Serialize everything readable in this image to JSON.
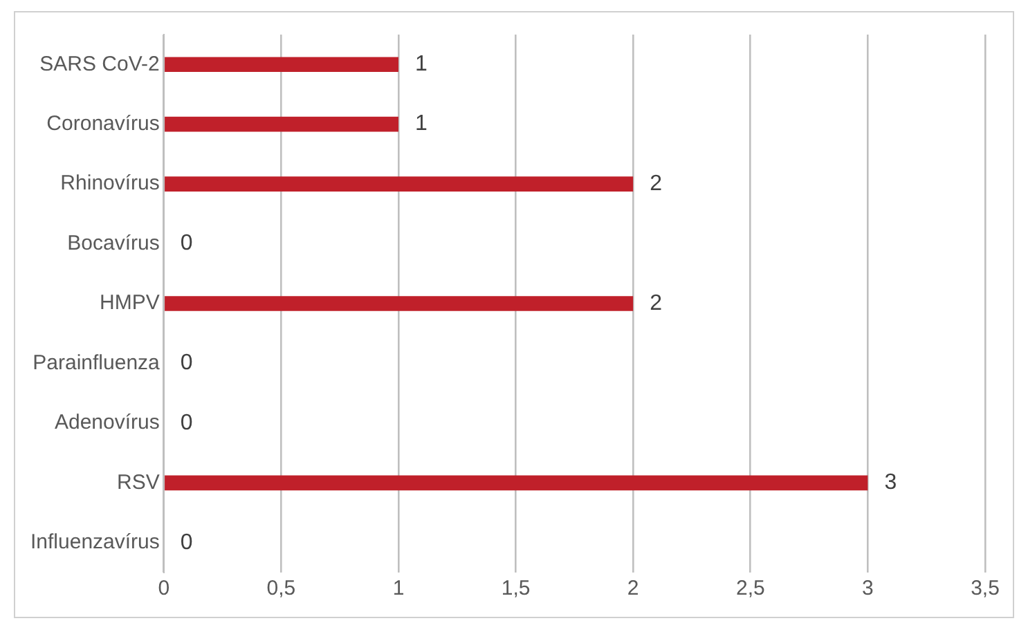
{
  "chart_data": {
    "type": "bar",
    "orientation": "horizontal",
    "categories": [
      "SARS CoV-2",
      "Coronavírus",
      "Rhinovírus",
      "Bocavírus",
      "HMPV",
      "Parainfluenza",
      "Adenovírus",
      "RSV",
      "Influenzavírus"
    ],
    "values": [
      1,
      1,
      2,
      0,
      2,
      0,
      0,
      3,
      0
    ],
    "color": "#c0202a",
    "xlim": [
      0,
      3.5
    ],
    "xticks": [
      0,
      {
        "value": 0.5,
        "label": "0,5"
      },
      1,
      {
        "value": 1.5,
        "label": "1,5"
      },
      2,
      {
        "value": 2.5,
        "label": "2,5"
      },
      3,
      {
        "value": 3.5,
        "label": "3,5"
      }
    ],
    "grid": "x",
    "legend": false,
    "data_labels": true
  }
}
